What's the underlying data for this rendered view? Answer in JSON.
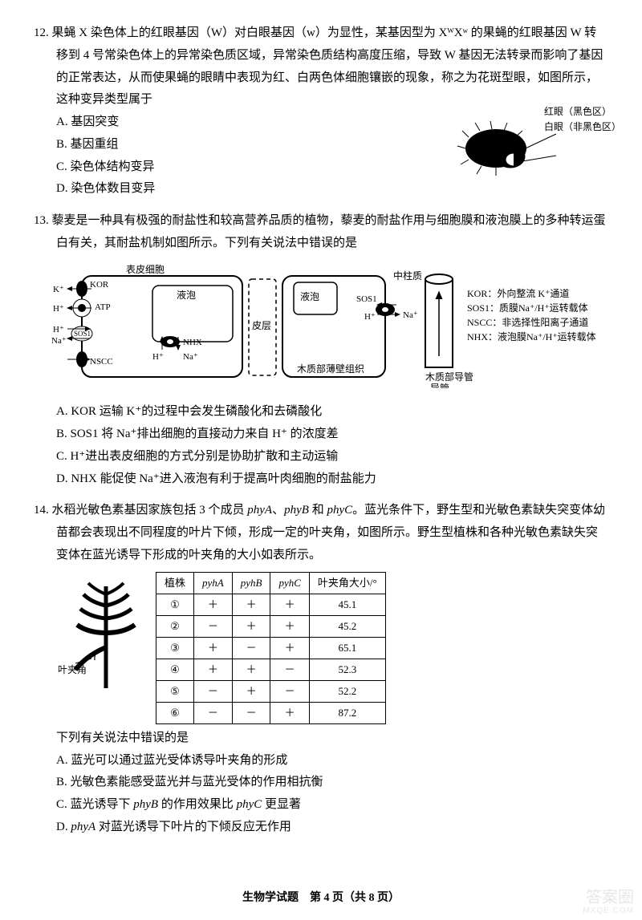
{
  "q12": {
    "number": "12.",
    "stem": "果蝇 X 染色体上的红眼基因（W）对白眼基因（w）为显性，某基因型为 XᵂXʷ 的果蝇的红眼基因 W 转移到 4 号常染色体上的异常染色质区域，异常染色质结构高度压缩，导致 W 基因无法转录而影响了基因的正常表达，从而使果蝇的眼睛中表现为红、白两色体细胞镶嵌的现象，称之为花斑型眼，如图所示，这种变异类型属于",
    "A": "A. 基因突变",
    "B": "B. 基因重组",
    "C": "C. 染色体结构变异",
    "D": "D. 染色体数目变异",
    "label_red": "红眼（黑色区）",
    "label_white": "白眼（非黑色区）"
  },
  "q13": {
    "number": "13.",
    "stem": "藜麦是一种具有极强的耐盐性和较高营养品质的植物，藜麦的耐盐作用与细胞膜和液泡膜上的多种转运蛋白有关，其耐盐机制如图所示。下列有关说法中错误的是",
    "A": "A. KOR 运输 K⁺的过程中会发生磷酸化和去磷酸化",
    "B": "B. SOS1 将 Na⁺排出细胞的直接动力来自 H⁺ 的浓度差",
    "C": "C. H⁺进出表皮细胞的方式分别是协助扩散和主动运输",
    "D": "D. NHX 能促使 Na⁺进入液泡有利于提高叶肉细胞的耐盐能力",
    "diagram": {
      "title_epidermis": "表皮细胞",
      "vacuole": "液泡",
      "cortex": "皮层",
      "xylem_thin": "木质部薄壁组织",
      "central": "中柱质",
      "xylem_vessel": "木质部导管",
      "KOR": "KOR",
      "SOS1": "SOS1",
      "NSCC": "NSCC",
      "NHX": "NHX",
      "ATP": "ATP",
      "K": "K⁺",
      "H": "H⁺",
      "Na": "Na⁺",
      "legend": {
        "KOR": "KOR：外向整流 K⁺通道",
        "SOS1": "SOS1：质膜Na⁺/H⁺运转载体",
        "NSCC": "NSCC：非选择性阳离子通道",
        "NHX": "NHX：液泡膜Na⁺/H⁺运转载体"
      }
    }
  },
  "q14": {
    "number": "14.",
    "stem": "水稻光敏色素基因家族包括 3 个成员 phyA、phyB 和 phyC。蓝光条件下，野生型和光敏色素缺失突变体幼苗都会表现出不同程度的叶片下倾，形成一定的叶夹角，如图所示。野生型植株和各种光敏色素缺失突变体在蓝光诱导下形成的叶夹角的大小如表所示。",
    "leaf_label": "叶夹角",
    "table": {
      "headers": [
        "植株",
        "pyhA",
        "pyhB",
        "pyhC",
        "叶夹角大小/°"
      ],
      "rows": [
        [
          "①",
          "＋",
          "＋",
          "＋",
          "45.1"
        ],
        [
          "②",
          "－",
          "＋",
          "＋",
          "45.2"
        ],
        [
          "③",
          "＋",
          "－",
          "＋",
          "65.1"
        ],
        [
          "④",
          "＋",
          "＋",
          "－",
          "52.3"
        ],
        [
          "⑤",
          "－",
          "＋",
          "－",
          "52.2"
        ],
        [
          "⑥",
          "－",
          "－",
          "＋",
          "87.2"
        ]
      ]
    },
    "sub": "下列有关说法中错误的是",
    "A": "A. 蓝光可以通过蓝光受体诱导叶夹角的形成",
    "B": "B. 光敏色素能感受蓝光并与蓝光受体的作用相抗衡",
    "C": "C. 蓝光诱导下 phyB 的作用效果比 phyC 更显著",
    "D": "D. phyA 对蓝光诱导下叶片的下倾反应无作用"
  },
  "footer": "生物学试题　第 4 页（共 8 页）",
  "watermark": {
    "main": "答案圈",
    "sub": "MXQE.COM"
  }
}
